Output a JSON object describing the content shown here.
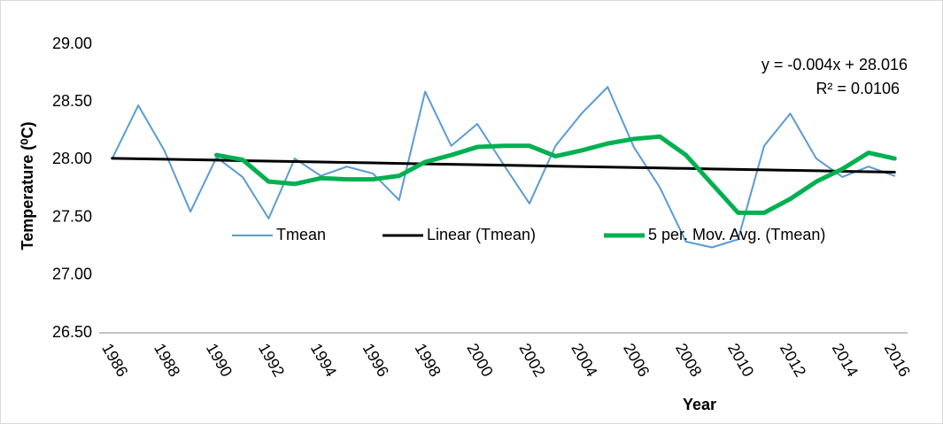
{
  "chart_data": {
    "type": "line",
    "y_label": "Temperature (⁰C)",
    "x_label": "Year",
    "annotations": [
      "y = -0.004x + 28.016",
      "R² = 0.0106"
    ],
    "categories": [
      1986,
      null,
      1988,
      null,
      1990,
      null,
      1992,
      null,
      1994,
      null,
      1996,
      null,
      1998,
      null,
      2000,
      null,
      2002,
      null,
      2004,
      null,
      2006,
      null,
      2008,
      null,
      2010,
      null,
      2012,
      null,
      2014,
      null,
      2016
    ],
    "series": [
      {
        "name": "Tmean",
        "color": "#5b9bd5",
        "width": 2,
        "values": [
          28.01,
          28.47,
          28.08,
          27.55,
          28.02,
          27.85,
          27.49,
          28.01,
          27.86,
          27.94,
          27.88,
          27.65,
          28.59,
          28.12,
          28.31,
          27.96,
          27.62,
          28.12,
          28.4,
          28.63,
          28.11,
          27.76,
          27.29,
          27.24,
          27.31,
          28.12,
          28.4,
          28.01,
          27.85,
          27.94,
          27.86
        ]
      },
      {
        "name": "Linear (Tmean)",
        "color": "#000000",
        "width": 3,
        "values": [
          28.012,
          28.008,
          28.004,
          28.0,
          27.996,
          27.992,
          27.988,
          27.984,
          27.98,
          27.976,
          27.972,
          27.968,
          27.964,
          27.96,
          27.956,
          27.952,
          27.948,
          27.944,
          27.94,
          27.936,
          27.932,
          27.928,
          27.924,
          27.92,
          27.916,
          27.912,
          27.908,
          27.904,
          27.9,
          27.896,
          27.892
        ]
      },
      {
        "name": "5 per. Mov. Avg. (Tmean)",
        "color": "#00b050",
        "width": 5,
        "values": [
          null,
          null,
          null,
          null,
          28.04,
          28.0,
          27.81,
          27.79,
          27.84,
          27.83,
          27.83,
          27.86,
          27.98,
          28.04,
          28.11,
          28.12,
          28.12,
          28.03,
          28.08,
          28.14,
          28.18,
          28.2,
          28.04,
          27.79,
          27.54,
          27.54,
          27.66,
          27.81,
          27.92,
          28.06,
          28.01
        ]
      }
    ],
    "ylim": [
      26.5,
      29.0
    ],
    "yticks": [
      {
        "value": 26.5,
        "label": "26.50"
      },
      {
        "value": 27,
        "label": "27.00"
      },
      {
        "value": 27.5,
        "label": "27.50"
      },
      {
        "value": 28,
        "label": "28.00"
      },
      {
        "value": 28.5,
        "label": "28.50"
      },
      {
        "value": 29,
        "label": "29.00"
      }
    ],
    "grid": false
  }
}
